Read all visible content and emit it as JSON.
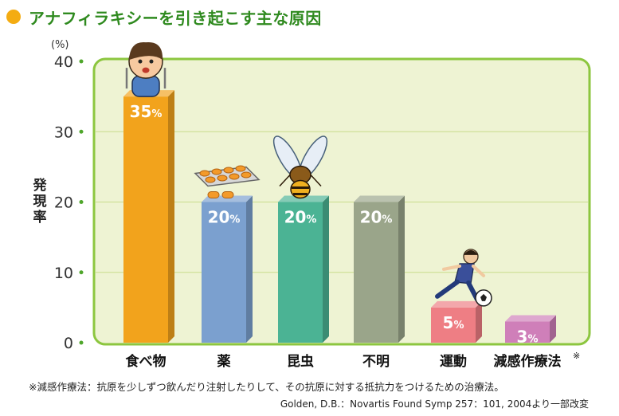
{
  "chart_data": {
    "type": "bar",
    "title": "アナフィラキシーを引き起こす主な原因",
    "ylabel": "発現率",
    "yunit": "(%)",
    "ylim": [
      0,
      40
    ],
    "yticks": [
      "0",
      "10",
      "20",
      "30",
      "40"
    ],
    "categories": [
      "食べ物",
      "薬",
      "昆虫",
      "不明",
      "運動",
      "減感作療法"
    ],
    "category_note_mark": "※",
    "values": [
      35,
      20,
      20,
      20,
      5,
      3
    ],
    "value_labels": [
      "35%",
      "20%",
      "20%",
      "20%",
      "5%",
      "3%"
    ],
    "colors": [
      "#f2a31c",
      "#7ba0cf",
      "#4bb394",
      "#9aa58a",
      "#ee7e84",
      "#cf7fb9"
    ],
    "grid": true,
    "legend": "none"
  },
  "footnote": "※減感作療法：抗原を少しずつ飲んだり注射したりして、その抗原に対する抵抗力をつけるための治療法。",
  "source": "Golden, D.B.：Novartis Found Symp 257：101, 2004より一部改変",
  "accent_color": "#2f8a1f",
  "title_dot_color": "#f4ac12",
  "plot_background": "#eef3d3",
  "plot_border": "#8cc63f",
  "icons": [
    "child-eating-icon",
    "pill-pack-icon",
    "hornet-icon",
    "soccer-player-icon"
  ]
}
